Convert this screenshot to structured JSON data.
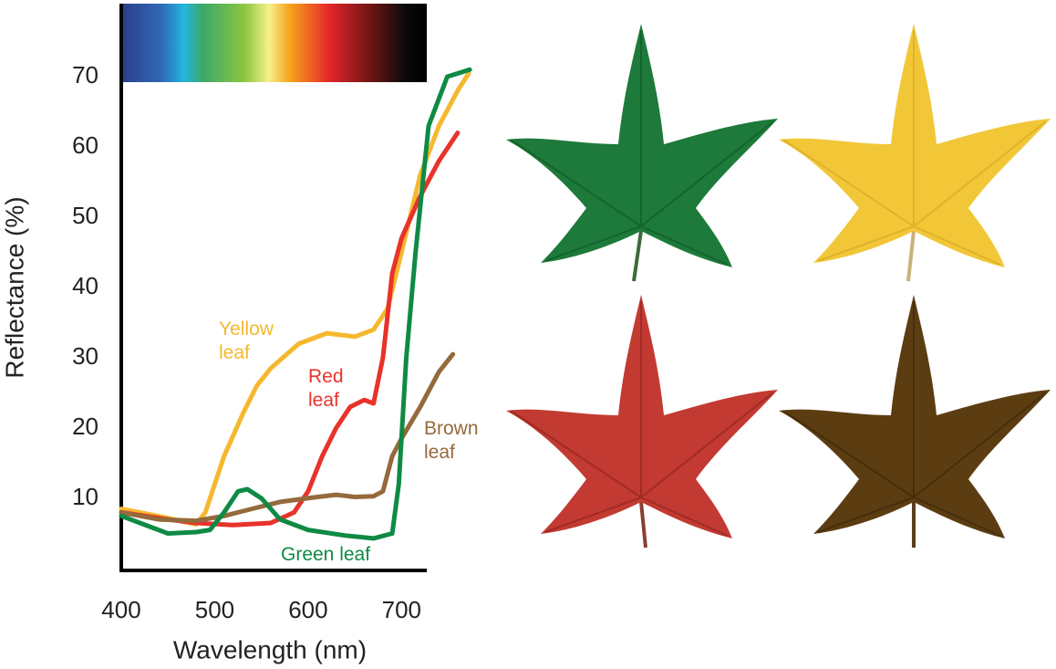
{
  "chart_data": {
    "type": "line",
    "xlabel": "Wavelength (nm)",
    "ylabel": "Reflectance (%)",
    "xlim": [
      400,
      727
    ],
    "ylim": [
      0,
      80
    ],
    "xticks": [
      400,
      500,
      600,
      700
    ],
    "yticks": [
      10,
      20,
      30,
      40,
      50,
      60,
      70
    ],
    "grid": false,
    "series": [
      {
        "name": "Yellow leaf",
        "color": "#f5b82e",
        "x": [
          400,
          450,
          480,
          490,
          510,
          530,
          545,
          560,
          590,
          620,
          650,
          670,
          685,
          700,
          720,
          740,
          760,
          772
        ],
        "values": [
          8.5,
          7.2,
          6.3,
          8,
          16,
          22,
          26,
          28.5,
          32,
          33.5,
          33,
          34,
          37,
          45,
          56,
          63,
          68,
          70.5
        ]
      },
      {
        "name": "Red leaf",
        "color": "#e8322a",
        "x": [
          400,
          450,
          480,
          520,
          560,
          585,
          600,
          615,
          630,
          645,
          660,
          670,
          680,
          690,
          700,
          720,
          740,
          760
        ],
        "values": [
          8,
          7,
          6.5,
          6.2,
          6.5,
          8,
          11,
          16,
          20,
          23,
          24,
          23.5,
          30,
          42,
          47,
          53,
          58,
          62
        ]
      },
      {
        "name": "Brown leaf",
        "color": "#946a3c",
        "x": [
          400,
          440,
          480,
          510,
          540,
          570,
          610,
          630,
          650,
          670,
          680,
          690,
          700,
          720,
          740,
          755
        ],
        "values": [
          8,
          7,
          6.8,
          7.5,
          8.5,
          9.5,
          10.2,
          10.5,
          10.2,
          10.3,
          11,
          16,
          18.5,
          23,
          28,
          30.5
        ]
      },
      {
        "name": "Green leaf",
        "color": "#0f8a45",
        "x": [
          400,
          420,
          450,
          480,
          495,
          510,
          525,
          535,
          550,
          570,
          600,
          640,
          670,
          690,
          697,
          705,
          715,
          729,
          749,
          773
        ],
        "values": [
          7.5,
          6.5,
          5,
          5.2,
          5.5,
          8,
          11,
          11.3,
          10,
          7,
          5.5,
          4.7,
          4.3,
          5,
          12,
          30,
          45,
          63,
          70,
          71
        ]
      }
    ]
  }
}
